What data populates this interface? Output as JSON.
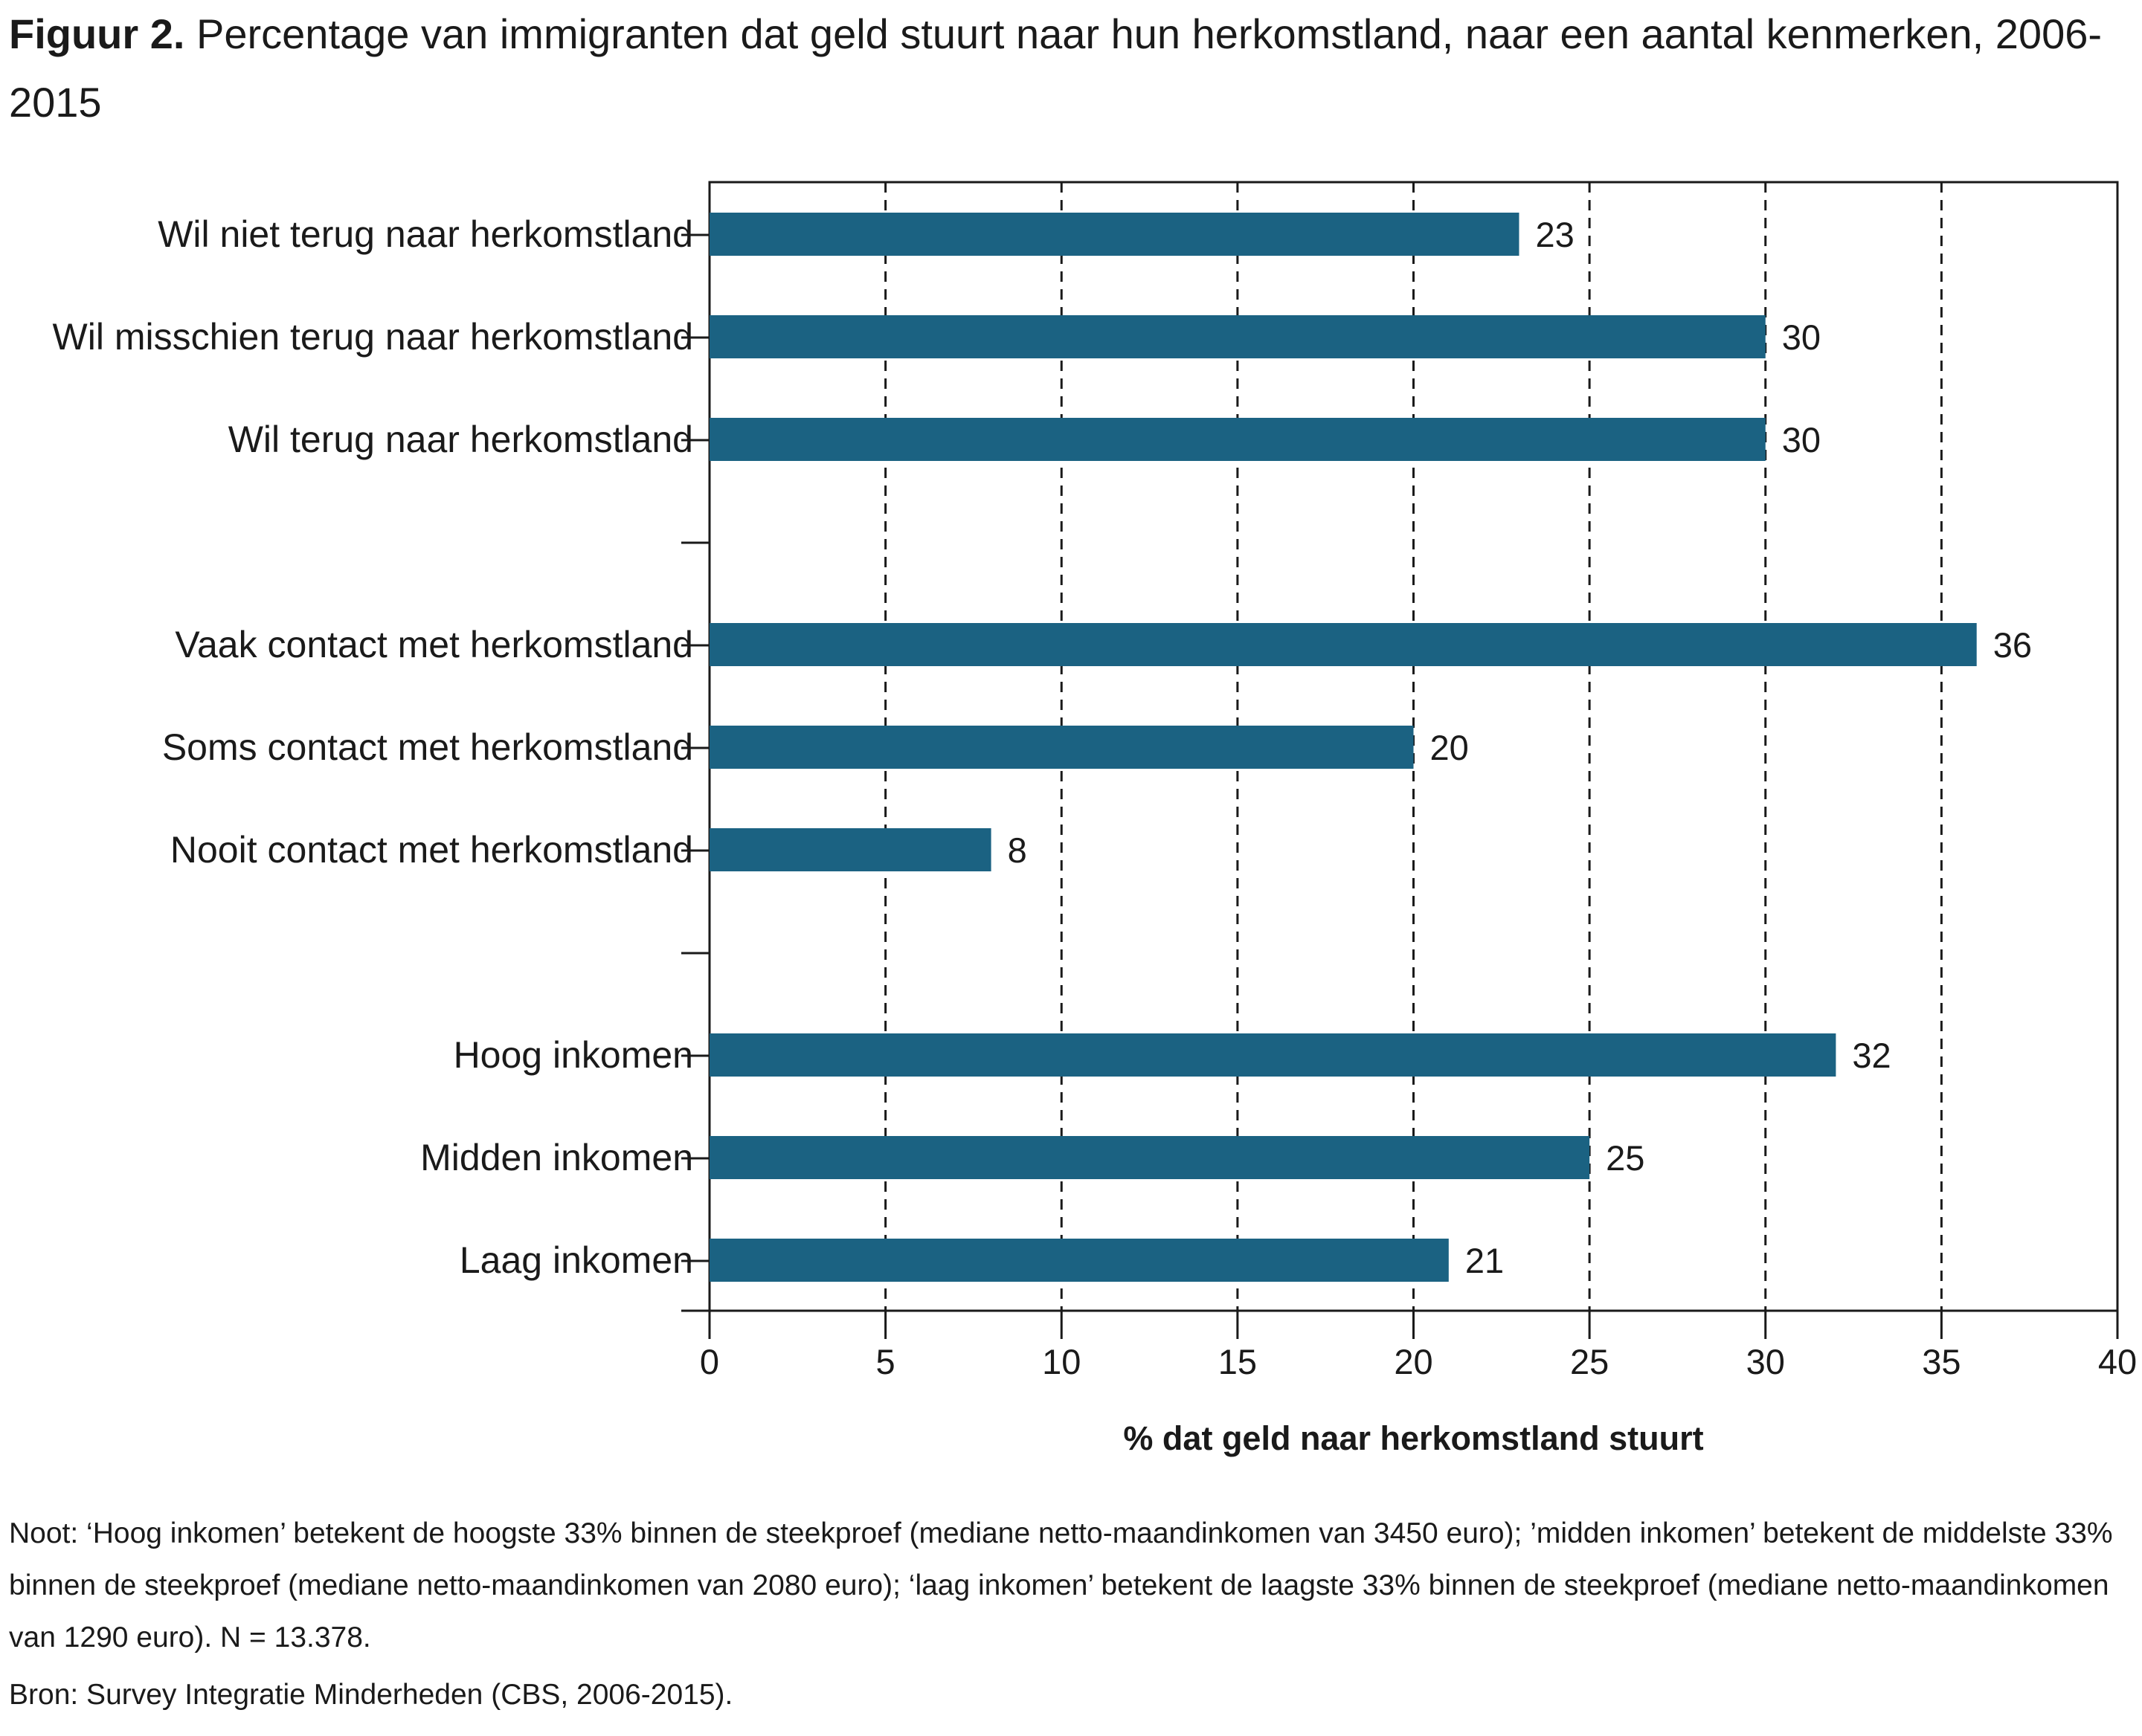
{
  "title": {
    "label": "Figuur 2.",
    "text": "Percentage van immigranten dat geld stuurt naar hun herkomstland, naar een aantal kenmerken, 2006-2015"
  },
  "chart_data": {
    "type": "bar",
    "orientation": "horizontal",
    "title": "Percentage van immigranten dat geld stuurt naar hun herkomstland, naar een aantal kenmerken, 2006-2015",
    "xlabel": "% dat geld naar herkomstland stuurt",
    "ylabel": "",
    "xlim": [
      0,
      40
    ],
    "xticks": [
      0,
      5,
      10,
      15,
      20,
      25,
      30,
      35,
      40
    ],
    "grid": "vertical dashed",
    "bar_color": "#1b6282",
    "groups": [
      {
        "categories": [
          "Wil niet terug naar herkomstland",
          "Wil misschien terug naar herkomstland",
          "Wil terug naar herkomstland"
        ],
        "values": [
          23,
          30,
          30
        ]
      },
      {
        "categories": [
          "Vaak contact met herkomstland",
          "Soms contact met herkomstland",
          "Nooit contact met herkomstland"
        ],
        "values": [
          36,
          20,
          8
        ]
      },
      {
        "categories": [
          "Hoog inkomen",
          "Midden inkomen",
          "Laag inkomen"
        ],
        "values": [
          32,
          25,
          21
        ]
      }
    ]
  },
  "notes": {
    "text": "Noot: ‘Hoog inkomen’ betekent de hoogste 33% binnen de steekproef (mediane netto-maandinkomen van 3450 euro); ’midden inkomen’ betekent de middelste 33% binnen de steekproef (mediane netto-maandinkomen van 2080 euro); ‘laag inkomen’ betekent de laagste 33% binnen de steekproef (mediane netto-maandinkomen van 1290 euro).  N = 13.378."
  },
  "source": {
    "text": "Bron: Survey Integratie Minderheden (CBS, 2006-2015)."
  }
}
